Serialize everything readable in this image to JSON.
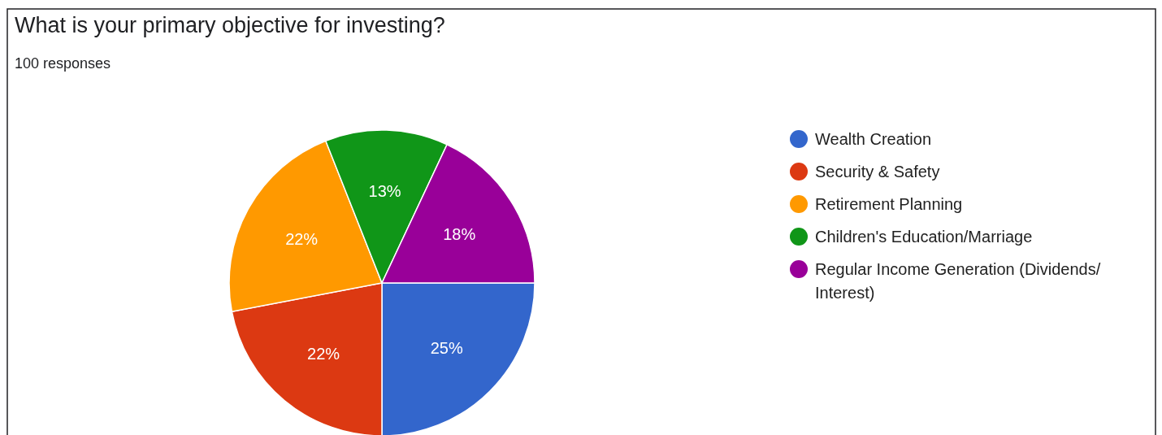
{
  "chart_data": {
    "type": "pie",
    "title": "What is your primary objective for investing?",
    "subtitle": "100 responses",
    "categories": [
      "Wealth Creation",
      "Security & Safety",
      "Retirement Planning",
      "Children's Education/Marriage",
      "Regular Income Generation (Dividends/Interest)"
    ],
    "values": [
      25,
      22,
      22,
      13,
      18
    ],
    "colors": [
      "#3366cc",
      "#dc3912",
      "#ff9900",
      "#109618",
      "#990099"
    ],
    "value_labels": [
      "25%",
      "22%",
      "22%",
      "13%",
      "18%"
    ],
    "legend": "right"
  }
}
